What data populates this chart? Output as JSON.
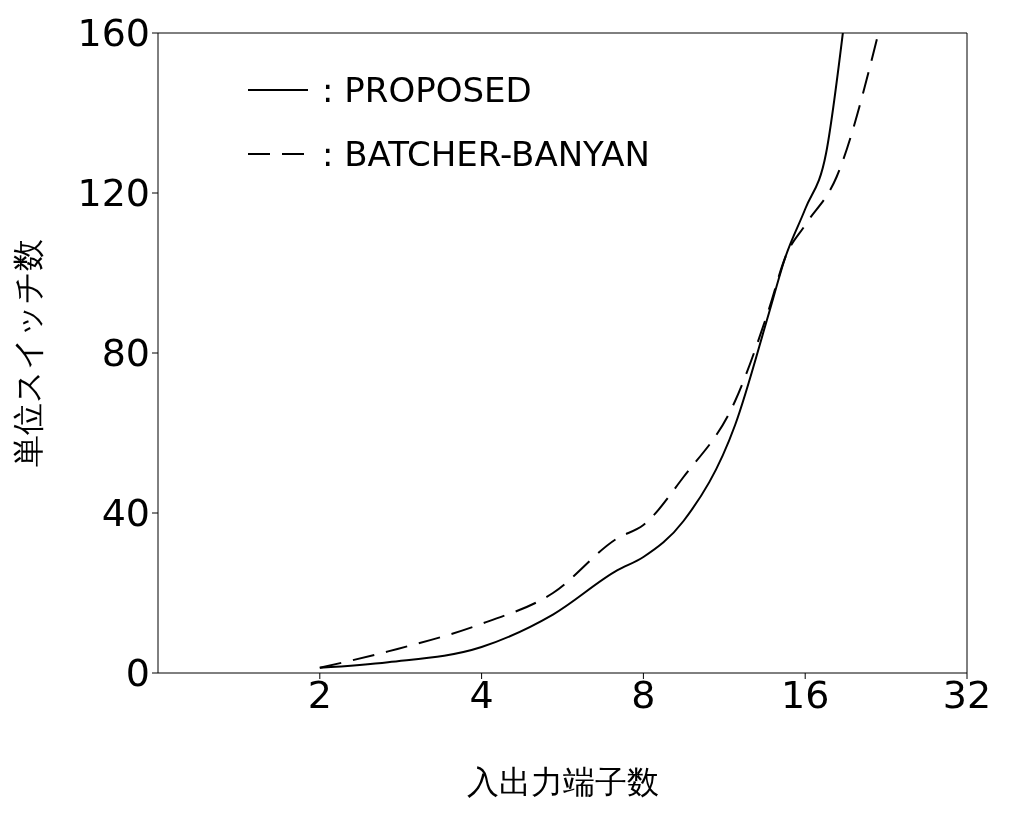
{
  "chart_data": {
    "type": "line",
    "xlabel": "入出力端子数",
    "ylabel": "単位スイッチ数",
    "log": "x",
    "xlim": [
      1,
      32
    ],
    "xticks": [
      2,
      4,
      8,
      16,
      32
    ],
    "ylim": [
      0,
      160
    ],
    "yticks": [
      0,
      40,
      80,
      120,
      160
    ],
    "legend": "top left",
    "marker": "none",
    "series": [
      {
        "name": ": PROPOSED",
        "color": "#000000",
        "line_style": "solid",
        "x": [
          2,
          2.68,
          4,
          5.43,
          7.16,
          8,
          9.5,
          11.85,
          13.7,
          14.7,
          16,
          17.5,
          18.8
        ],
        "values": [
          1.3,
          2.7,
          6.5,
          14.6,
          25.7,
          29,
          38,
          62,
          90,
          104,
          116,
          130,
          160
        ]
      },
      {
        "name": ": BATCHER-BANYAN",
        "color": "#000000",
        "line_style": "dashed",
        "x": [
          2,
          2.68,
          4,
          5.43,
          7.16,
          8,
          9.5,
          11.85,
          13.7,
          14.7,
          16,
          18.3,
          21.9
        ],
        "values": [
          1.3,
          5.4,
          12.3,
          20,
          33.7,
          37,
          49,
          68,
          91,
          104,
          112,
          124,
          160
        ]
      }
    ]
  }
}
